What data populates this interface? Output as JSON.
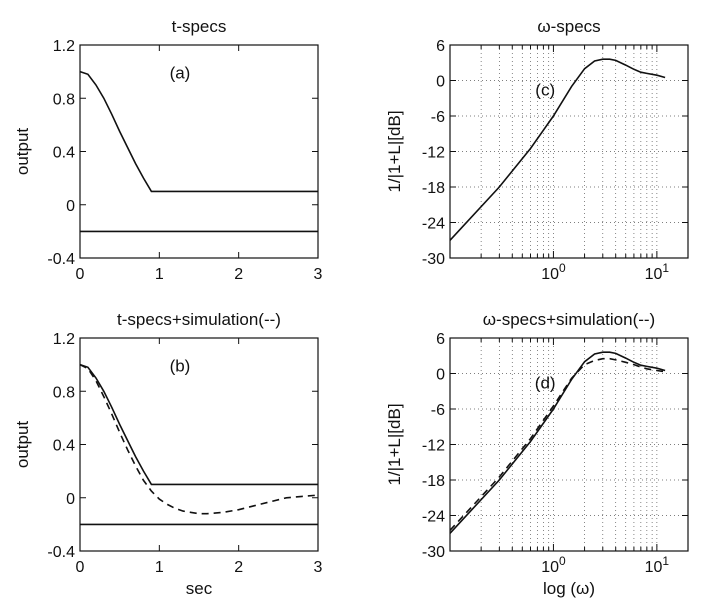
{
  "chart_data": [
    {
      "id": "a",
      "type": "line",
      "title": "t-specs",
      "panel_label": "(a)",
      "xlabel": "",
      "ylabel": "output",
      "xlim": [
        0,
        3
      ],
      "ylim": [
        -0.4,
        1.2
      ],
      "xticks": [
        0,
        1,
        2,
        3
      ],
      "xticklabels": [
        "0",
        "1",
        "2",
        "3"
      ],
      "yticks": [
        -0.4,
        0,
        0.4,
        0.8,
        1.2
      ],
      "yticklabels": [
        "-0.4",
        "0",
        "0.4",
        "0.8",
        "1.2"
      ],
      "xscale": "linear",
      "grid": false,
      "series": [
        {
          "style": "solid",
          "x": [
            0,
            0.1,
            0.2,
            0.3,
            0.4,
            0.5,
            0.6,
            0.7,
            0.8,
            0.9,
            3
          ],
          "y": [
            1.0,
            0.98,
            0.9,
            0.8,
            0.68,
            0.55,
            0.43,
            0.31,
            0.2,
            0.1,
            0.1
          ]
        },
        {
          "style": "solid",
          "x": [
            0,
            3
          ],
          "y": [
            -0.2,
            -0.2
          ]
        }
      ]
    },
    {
      "id": "b",
      "type": "line",
      "title": "t-specs+simulation(--)",
      "panel_label": "(b)",
      "xlabel": "sec",
      "ylabel": "output",
      "xlim": [
        0,
        3
      ],
      "ylim": [
        -0.4,
        1.2
      ],
      "xticks": [
        0,
        1,
        2,
        3
      ],
      "xticklabels": [
        "0",
        "1",
        "2",
        "3"
      ],
      "yticks": [
        -0.4,
        0,
        0.4,
        0.8,
        1.2
      ],
      "yticklabels": [
        "-0.4",
        "0",
        "0.4",
        "0.8",
        "1.2"
      ],
      "xscale": "linear",
      "grid": false,
      "series": [
        {
          "style": "solid",
          "x": [
            0,
            0.1,
            0.2,
            0.3,
            0.4,
            0.5,
            0.6,
            0.7,
            0.8,
            0.9,
            3
          ],
          "y": [
            1.0,
            0.98,
            0.9,
            0.8,
            0.68,
            0.55,
            0.43,
            0.31,
            0.2,
            0.1,
            0.1
          ]
        },
        {
          "style": "solid",
          "x": [
            0,
            3
          ],
          "y": [
            -0.2,
            -0.2
          ]
        },
        {
          "style": "dashed",
          "x": [
            0,
            0.1,
            0.2,
            0.3,
            0.4,
            0.5,
            0.6,
            0.7,
            0.8,
            0.9,
            1.0,
            1.1,
            1.2,
            1.3,
            1.4,
            1.5,
            1.6,
            1.7,
            1.8,
            2.0,
            2.2,
            2.4,
            2.6,
            2.8,
            3.0
          ],
          "y": [
            1.0,
            0.97,
            0.88,
            0.76,
            0.63,
            0.49,
            0.36,
            0.24,
            0.13,
            0.05,
            -0.01,
            -0.05,
            -0.08,
            -0.1,
            -0.11,
            -0.12,
            -0.12,
            -0.115,
            -0.11,
            -0.09,
            -0.06,
            -0.03,
            0.0,
            0.01,
            0.02
          ]
        }
      ]
    },
    {
      "id": "c",
      "type": "line",
      "title": "ω-specs",
      "panel_label": "(c)",
      "xlabel": "",
      "ylabel": "1/|1+L|[dB]",
      "xlim": [
        0.1,
        20
      ],
      "ylim": [
        -30,
        6
      ],
      "xscale": "log",
      "xticks": [
        1,
        10
      ],
      "xticklabels": [
        "10^0",
        "10^1"
      ],
      "yticks": [
        -30,
        -24,
        -18,
        -12,
        -6,
        0,
        6
      ],
      "yticklabels": [
        "-30",
        "-24",
        "-18",
        "-12",
        "-6",
        "0",
        "6"
      ],
      "grid": true,
      "series": [
        {
          "style": "solid",
          "x": [
            0.1,
            0.3,
            0.6,
            1.0,
            1.5,
            2.0,
            2.5,
            3.0,
            3.5,
            4.0,
            5.0,
            6.0,
            7.0,
            8.0,
            10.0,
            12.0
          ],
          "y": [
            -27.0,
            -18.0,
            -11.5,
            -6.0,
            -1.0,
            2.0,
            3.3,
            3.6,
            3.6,
            3.4,
            2.6,
            1.9,
            1.4,
            1.2,
            0.9,
            0.5
          ]
        }
      ]
    },
    {
      "id": "d",
      "type": "line",
      "title": "ω-specs+simulation(--)",
      "panel_label": "(d)",
      "xlabel": "log (ω)",
      "ylabel": "1/|1+L|[dB]",
      "xlim": [
        0.1,
        20
      ],
      "ylim": [
        -30,
        6
      ],
      "xscale": "log",
      "xticks": [
        1,
        10
      ],
      "xticklabels": [
        "10^0",
        "10^1"
      ],
      "yticks": [
        -30,
        -24,
        -18,
        -12,
        -6,
        0,
        6
      ],
      "yticklabels": [
        "-30",
        "-24",
        "-18",
        "-12",
        "-6",
        "0",
        "6"
      ],
      "grid": true,
      "series": [
        {
          "style": "solid",
          "x": [
            0.1,
            0.3,
            0.6,
            1.0,
            1.5,
            2.0,
            2.5,
            3.0,
            3.5,
            4.0,
            5.0,
            6.0,
            7.0,
            8.0,
            10.0,
            12.0
          ],
          "y": [
            -27.0,
            -18.0,
            -11.5,
            -6.0,
            -1.0,
            2.0,
            3.3,
            3.6,
            3.6,
            3.4,
            2.6,
            1.9,
            1.4,
            1.2,
            0.9,
            0.5
          ]
        },
        {
          "style": "dashed",
          "x": [
            0.1,
            0.3,
            0.6,
            1.0,
            1.5,
            2.0,
            2.5,
            3.0,
            3.5,
            4.0,
            5.0,
            6.0,
            7.0,
            8.0,
            10.0,
            12.0
          ],
          "y": [
            -26.5,
            -17.5,
            -11.0,
            -5.5,
            -0.8,
            1.5,
            2.2,
            2.5,
            2.5,
            2.3,
            1.9,
            1.5,
            1.1,
            0.8,
            0.5,
            0.3
          ]
        }
      ]
    }
  ]
}
